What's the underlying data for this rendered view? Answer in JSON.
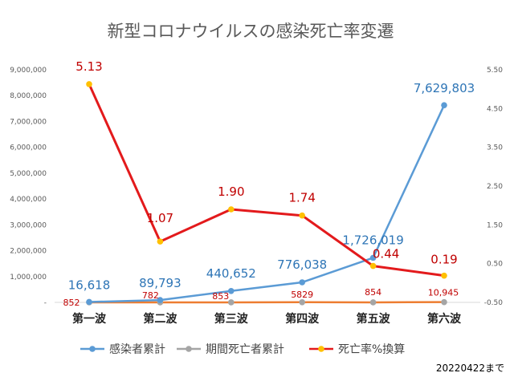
{
  "chart_data": {
    "type": "line",
    "title": "新型コロナウイルスの感染死亡率変遷",
    "categories": [
      "第一波",
      "第二波",
      "第三波",
      "第四波",
      "第五波",
      "第六波"
    ],
    "y_left": {
      "min": 0,
      "max": 9000000,
      "ticks": [
        "-",
        "1,000,000",
        "2,000,000",
        "3,000,000",
        "4,000,000",
        "5,000,000",
        "6,000,000",
        "7,000,000",
        "8,000,000",
        "9,000,000"
      ]
    },
    "y_right": {
      "min": -0.5,
      "max": 5.5,
      "ticks": [
        "-0.50",
        "0.50",
        "1.50",
        "2.50",
        "3.50",
        "4.50",
        "5.50"
      ]
    },
    "series": [
      {
        "name": "感染者累計",
        "axis": "left",
        "color": "#5b9bd5",
        "values": [
          16618,
          89793,
          440652,
          776038,
          1726019,
          7629803
        ],
        "labels": [
          "16,618",
          "89,793",
          "440,652",
          "776,038",
          "1,726,019",
          "7,629,803"
        ]
      },
      {
        "name": "期間死亡者累計",
        "axis": "left",
        "color": "#ed7d31",
        "values": [
          852,
          782,
          853,
          5829,
          854,
          10945
        ],
        "labels": [
          "852",
          "782",
          "853",
          "5829",
          "854",
          "10,945"
        ]
      },
      {
        "name": "死亡率%換算",
        "axis": "right",
        "color": "#e31a1c",
        "values": [
          5.13,
          1.07,
          1.9,
          1.74,
          0.44,
          0.19
        ],
        "labels": [
          "5.13",
          "1.07",
          "1.90",
          "1.74",
          "0.44",
          "0.19"
        ]
      }
    ],
    "footnote": "20220422まで"
  }
}
